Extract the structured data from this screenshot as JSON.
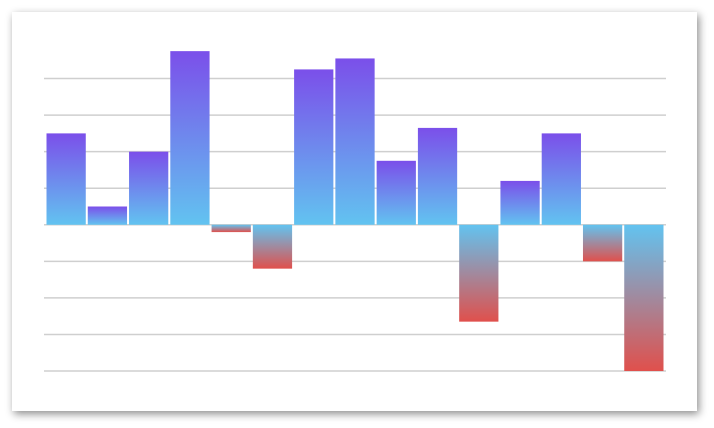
{
  "chart_data": {
    "type": "bar",
    "categories": [
      null,
      null,
      null,
      null,
      null,
      null,
      null,
      null,
      null,
      null,
      null,
      null,
      null,
      null,
      null
    ],
    "values": [
      2.5,
      0.5,
      2.0,
      4.75,
      -0.2,
      -1.2,
      4.25,
      4.55,
      1.75,
      2.65,
      -2.65,
      1.2,
      2.5,
      -1.0,
      -4.0
    ],
    "positive_gradient": [
      "#7b4fea",
      "#62c3f0"
    ],
    "negative_gradient": [
      "#62c3f0",
      "#e0504c"
    ],
    "ylim": [
      -4,
      5
    ],
    "yticks": [
      -4,
      -3,
      -2,
      -1,
      0,
      1,
      2,
      3,
      4
    ],
    "grid": true
  }
}
